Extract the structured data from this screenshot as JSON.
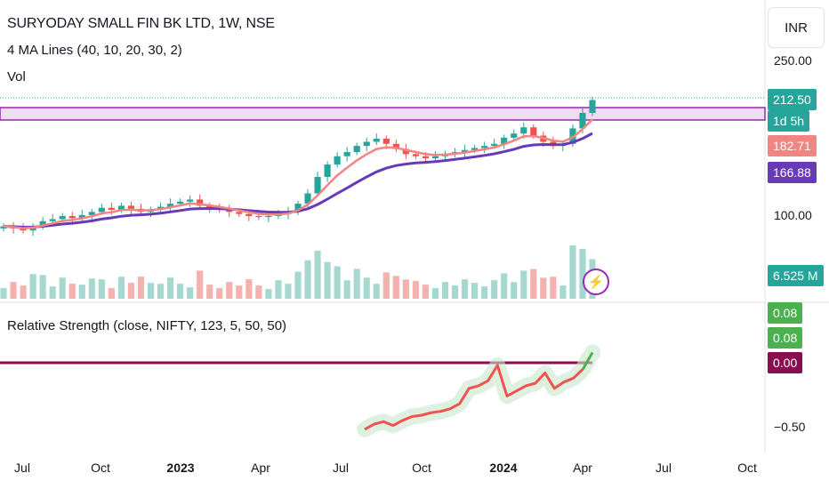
{
  "header": {
    "title": "SURYODAY SMALL FIN BK LTD, 1W, NSE",
    "ma_legend": "4 MA Lines (40, 10, 20, 30, 2)",
    "vol_legend": "Vol",
    "rs_legend": "Relative Strength (close, NIFTY, 123, 5, 50, 50)"
  },
  "currency": "INR",
  "price_axis": {
    "tick_250": "250.00",
    "tick_100": "100.00"
  },
  "rs_axis": {
    "tick_neg": "−0.50"
  },
  "tags": {
    "last_price": "212.50",
    "countdown": "1d 5h",
    "ma_fast": "182.71",
    "ma_slow": "166.88",
    "volume": "6.525 M",
    "rs_value1": "0.08",
    "rs_value2": "0.08",
    "rs_zero": "0.00"
  },
  "colors": {
    "up": "#26a69a",
    "down": "#ef5350",
    "ma_fast": "#f28482",
    "ma_slow": "#673ab7",
    "zone": "#9c27b0",
    "rs_line": "#ef5350",
    "rs_zero": "#880e4f",
    "rs_tag_green": "#4caf50"
  },
  "time_axis": {
    "labels": [
      "Jul",
      "Oct",
      "2023",
      "Apr",
      "Jul",
      "Oct",
      "2024",
      "Apr",
      "Jul",
      "Oct"
    ]
  },
  "chart_data": {
    "type": "candlestick",
    "timeframe": "1W",
    "x_ticks": [
      "Jul",
      "Oct",
      "2023",
      "Apr",
      "Jul",
      "Oct",
      "2024",
      "Apr",
      "Jul",
      "Oct"
    ],
    "y_ticks": [
      100,
      250
    ],
    "last_price": 212.5,
    "ma_fast_last": 182.71,
    "ma_slow_last": 166.88,
    "last_volume_millions": 6.525,
    "resistance_zone": [
      195,
      206
    ],
    "close_series": [
      90,
      88,
      86,
      90,
      95,
      97,
      100,
      98,
      101,
      104,
      108,
      106,
      110,
      107,
      104,
      106,
      109,
      112,
      114,
      116,
      110,
      108,
      106,
      104,
      102,
      100,
      99,
      100,
      102,
      104,
      112,
      122,
      138,
      150,
      158,
      162,
      168,
      172,
      175,
      170,
      165,
      160,
      158,
      156,
      158,
      160,
      162,
      164,
      166,
      168,
      170,
      176,
      180,
      186,
      178,
      172,
      168,
      170,
      185,
      200,
      212.5
    ],
    "relative_strength": {
      "zero_line": 0,
      "ticks": [
        -0.5,
        0
      ],
      "last_value": 0.08,
      "values": [
        -0.52,
        -0.48,
        -0.46,
        -0.49,
        -0.45,
        -0.42,
        -0.41,
        -0.39,
        -0.38,
        -0.36,
        -0.32,
        -0.2,
        -0.18,
        -0.14,
        -0.02,
        -0.26,
        -0.22,
        -0.18,
        -0.16,
        -0.08,
        -0.2,
        -0.15,
        -0.12,
        -0.05,
        0.08
      ]
    }
  }
}
